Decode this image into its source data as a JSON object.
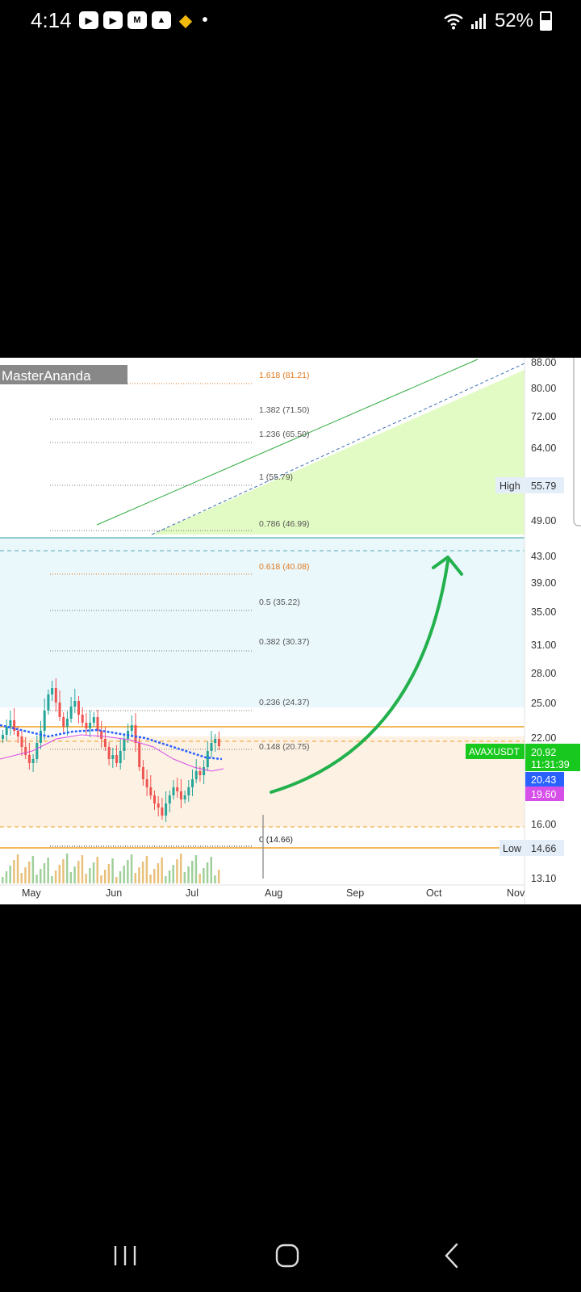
{
  "status_bar": {
    "time": "4:14",
    "notification_icons": [
      "youtube-icon",
      "youtube-icon",
      "coinmarketcap-icon",
      "mountain-app-icon",
      "binance-icon",
      "dot-icon"
    ],
    "battery": "52%"
  },
  "chart": {
    "author": "MasterAnanda",
    "symbol": "AVAXUSDT",
    "price_labels": {
      "last": "20.92",
      "countdown": "11:31:39",
      "ma_blue": "20.43",
      "ma_pink": "19.60",
      "high_label": "High",
      "high_value": "55.79",
      "low_label": "Low",
      "low_value": "14.66"
    },
    "y_ticks": [
      "88.00",
      "80.00",
      "72.00",
      "64.00",
      "49.00",
      "43.00",
      "39.00",
      "35.00",
      "31.00",
      "28.00",
      "25.00",
      "22.00",
      "16.00",
      "13.10"
    ],
    "x_ticks": [
      "May",
      "Jun",
      "Jul",
      "Aug",
      "Sep",
      "Oct",
      "Nov"
    ],
    "fib_levels": [
      {
        "label": "1.618 (81.21)",
        "color": "#e07a1f"
      },
      {
        "label": "1.382 (71.50)",
        "color": "#555555"
      },
      {
        "label": "1.236 (65.50)",
        "color": "#555555"
      },
      {
        "label": "1 (55.79)",
        "color": "#555555"
      },
      {
        "label": "0.786 (46.99)",
        "color": "#555555"
      },
      {
        "label": "0.618 (40.08)",
        "color": "#e07a1f"
      },
      {
        "label": "0.5 (35.22)",
        "color": "#555555"
      },
      {
        "label": "0.382 (30.37)",
        "color": "#555555"
      },
      {
        "label": "0.236 (24.37)",
        "color": "#555555"
      },
      {
        "label": "0.148 (20.75)",
        "color": "#555555"
      },
      {
        "label": "0 (14.66)",
        "color": "#222222"
      }
    ],
    "colors": {
      "up": "#26a69a",
      "down": "#ef5350",
      "target_zone": "#e2fbc4",
      "blue_zone": "#eaf7fb",
      "orange_zone": "#fdf1e3",
      "arrow": "#22b14c",
      "orange_line": "#f0a020",
      "teal_line": "#53aeb4",
      "symbol_tag": "#19c81e",
      "ma_blue_tag": "#2962ff",
      "ma_pink_tag": "#d64fe8"
    }
  },
  "nav_bar": {
    "buttons": [
      "recent-apps",
      "home",
      "back"
    ]
  }
}
